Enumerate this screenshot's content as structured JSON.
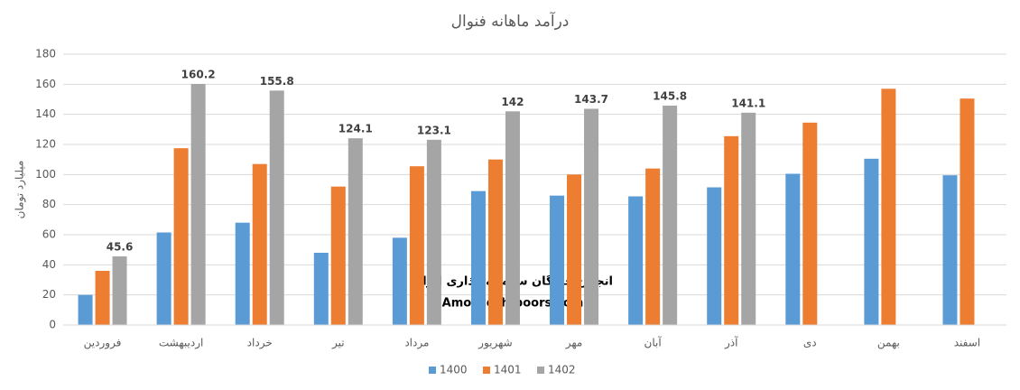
{
  "chart_data": {
    "type": "bar",
    "title": "درآمد ماهانه فنوال",
    "y_label": "میلیارد تومان",
    "categories": [
      "فروردین",
      "اردیبهشت",
      "خرداد",
      "تیر",
      "مرداد",
      "شهریور",
      "مهر",
      "آبان",
      "آذر",
      "دی",
      "بهمن",
      "اسفند"
    ],
    "series": [
      {
        "name": "1400",
        "color": "#5b9bd5",
        "values": [
          20,
          61.5,
          68,
          48,
          58,
          89,
          86,
          85.5,
          91.5,
          100.5,
          110.5,
          99.5
        ]
      },
      {
        "name": "1401",
        "color": "#ed7d31",
        "values": [
          36,
          117.5,
          107,
          92,
          105.5,
          110,
          100,
          104,
          125.5,
          134.5,
          157,
          150.5
        ]
      },
      {
        "name": "1402",
        "color": "#a5a5a5",
        "values": [
          45.6,
          160.2,
          155.8,
          124.1,
          123.1,
          142,
          143.7,
          145.8,
          141.1,
          null,
          null,
          null
        ],
        "show_labels": true
      }
    ],
    "ylim": [
      0,
      180
    ],
    "yticks": [
      0,
      20,
      40,
      60,
      80,
      100,
      120,
      140,
      160,
      180
    ],
    "grid": true,
    "legend": "bottom",
    "annotations": [
      "انجمن خبرگان سرمایه گذاری ایران",
      "Amoozesh-boors.com"
    ]
  }
}
